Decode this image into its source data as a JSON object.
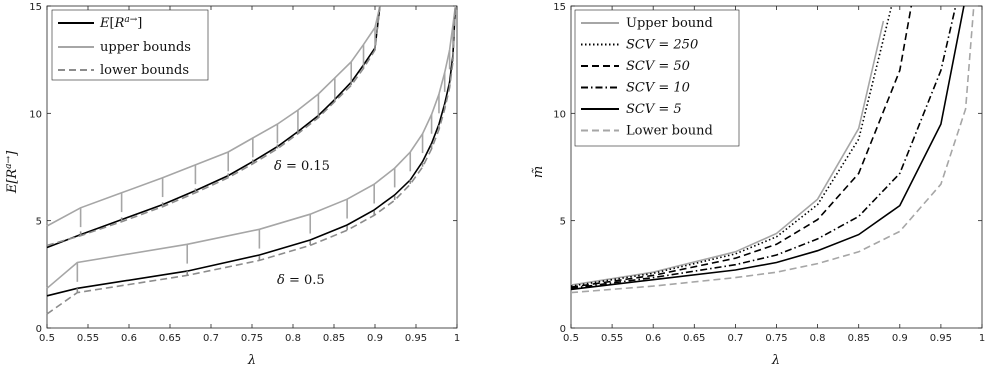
{
  "chart_data": [
    {
      "type": "line",
      "xlabel": "λ",
      "ylabel": "E[R^{a→}]",
      "xlim": [
        0.5,
        1
      ],
      "ylim": [
        0,
        15
      ],
      "xticks": [
        "0.5",
        "0.55",
        "0.6",
        "0.65",
        "0.7",
        "0.75",
        "0.8",
        "0.85",
        "0.9",
        "0.95",
        "1"
      ],
      "yticks": [
        "0",
        "5",
        "10",
        "15"
      ],
      "legend_position": "top-left",
      "legend": [
        "E[R^{a→}]",
        "upper bounds",
        "lower bounds"
      ],
      "annotations": [
        "δ = 0.15",
        "δ = 0.5"
      ],
      "series": [
        {
          "name": "E[R^{a→}]",
          "group": "δ = 0.15",
          "role": "exact",
          "color": "#000000",
          "style": "solid",
          "x": [
            0.5,
            0.541,
            0.591,
            0.641,
            0.681,
            0.721,
            0.751,
            0.781,
            0.806,
            0.831,
            0.851,
            0.871,
            0.886,
            0.9,
            0.906
          ],
          "y": [
            3.75,
            4.35,
            5.05,
            5.75,
            6.4,
            7.1,
            7.75,
            8.45,
            9.15,
            9.9,
            10.65,
            11.45,
            12.25,
            13.05,
            15
          ]
        },
        {
          "name": "upper bounds",
          "group": "δ = 0.15",
          "role": "upper",
          "color": "#a6a6a6",
          "style": "solid",
          "x": [
            0.5,
            0.541,
            0.591,
            0.641,
            0.681,
            0.721,
            0.751,
            0.781,
            0.806,
            0.831,
            0.851,
            0.871,
            0.886,
            0.9,
            0.906
          ],
          "y": [
            4.75,
            5.6,
            6.3,
            7.0,
            7.6,
            8.2,
            8.85,
            9.5,
            10.15,
            10.9,
            11.65,
            12.4,
            13.2,
            14.0,
            15
          ]
        },
        {
          "name": "lower bounds",
          "group": "δ = 0.15",
          "role": "lower",
          "color": "#8c8c8c",
          "style": "dashed",
          "x": [
            0.5,
            0.541,
            0.591,
            0.641,
            0.681,
            0.721,
            0.751,
            0.781,
            0.806,
            0.831,
            0.851,
            0.871,
            0.886,
            0.9,
            0.906
          ],
          "y": [
            3.85,
            4.3,
            4.95,
            5.65,
            6.3,
            7.0,
            7.65,
            8.35,
            9.05,
            9.8,
            10.55,
            11.3,
            12.1,
            12.95,
            15
          ]
        },
        {
          "name": "E[R^{a→}]",
          "group": "δ = 0.5",
          "role": "exact",
          "color": "#000000",
          "style": "solid",
          "x": [
            0.5,
            0.537,
            0.671,
            0.759,
            0.821,
            0.866,
            0.899,
            0.924,
            0.943,
            0.958,
            0.969,
            0.978,
            0.985,
            0.991,
            0.995,
            0.998
          ],
          "y": [
            1.5,
            1.85,
            2.65,
            3.4,
            4.1,
            4.8,
            5.5,
            6.2,
            6.9,
            7.75,
            8.6,
            9.5,
            10.45,
            11.45,
            12.7,
            15
          ]
        },
        {
          "name": "upper bounds",
          "group": "δ = 0.5",
          "role": "upper",
          "color": "#a6a6a6",
          "style": "solid",
          "x": [
            0.5,
            0.537,
            0.671,
            0.759,
            0.821,
            0.866,
            0.899,
            0.924,
            0.943,
            0.958,
            0.969,
            0.978,
            0.985,
            0.991,
            0.995,
            0.998
          ],
          "y": [
            1.85,
            3.05,
            3.9,
            4.6,
            5.3,
            6.0,
            6.7,
            7.45,
            8.2,
            9.05,
            9.95,
            10.9,
            11.9,
            12.95,
            14.1,
            15
          ]
        },
        {
          "name": "lower bounds",
          "group": "δ = 0.5",
          "role": "lower",
          "color": "#8c8c8c",
          "style": "dashed",
          "x": [
            0.5,
            0.537,
            0.671,
            0.759,
            0.821,
            0.866,
            0.899,
            0.924,
            0.943,
            0.958,
            0.969,
            0.978,
            0.985,
            0.991,
            0.995,
            0.998
          ],
          "y": [
            0.65,
            1.65,
            2.45,
            3.15,
            3.85,
            4.55,
            5.25,
            5.95,
            6.7,
            7.5,
            8.35,
            9.25,
            10.2,
            11.2,
            12.4,
            15
          ]
        }
      ]
    },
    {
      "type": "line",
      "xlabel": "λ",
      "ylabel": "m̃",
      "xlim": [
        0.5,
        1
      ],
      "ylim": [
        0,
        15
      ],
      "xticks": [
        "0.5",
        "0.55",
        "0.6",
        "0.65",
        "0.7",
        "0.75",
        "0.8",
        "0.85",
        "0.9",
        "0.95",
        "1"
      ],
      "yticks": [
        "0",
        "5",
        "10",
        "15"
      ],
      "legend_position": "top-left",
      "series": [
        {
          "name": "Upper bound",
          "color": "#a6a6a6",
          "style": "solid",
          "x": [
            0.5,
            0.6,
            0.7,
            0.75,
            0.8,
            0.85,
            0.88
          ],
          "y": [
            2.0,
            2.6,
            3.55,
            4.4,
            6.0,
            9.3,
            14.3
          ]
        },
        {
          "name": "SCV = 250",
          "color": "#000000",
          "style": "dotted",
          "x": [
            0.5,
            0.6,
            0.7,
            0.75,
            0.8,
            0.85,
            0.89
          ],
          "y": [
            1.95,
            2.55,
            3.45,
            4.25,
            5.75,
            8.8,
            15
          ]
        },
        {
          "name": "SCV = 50",
          "color": "#000000",
          "style": "dashed",
          "x": [
            0.5,
            0.6,
            0.7,
            0.75,
            0.8,
            0.85,
            0.9,
            0.914
          ],
          "y": [
            1.9,
            2.45,
            3.25,
            3.9,
            5.05,
            7.2,
            12.0,
            15
          ]
        },
        {
          "name": "SCV = 10",
          "color": "#000000",
          "style": "dashdot",
          "x": [
            0.5,
            0.6,
            0.7,
            0.75,
            0.8,
            0.85,
            0.9,
            0.95,
            0.968
          ],
          "y": [
            1.85,
            2.35,
            2.95,
            3.4,
            4.15,
            5.2,
            7.2,
            12.0,
            15
          ]
        },
        {
          "name": "SCV = 5",
          "color": "#000000",
          "style": "solid",
          "x": [
            0.5,
            0.6,
            0.7,
            0.75,
            0.8,
            0.85,
            0.9,
            0.95,
            0.978
          ],
          "y": [
            1.8,
            2.25,
            2.7,
            3.05,
            3.6,
            4.35,
            5.7,
            9.5,
            15
          ]
        },
        {
          "name": "Lower bound",
          "color": "#a6a6a6",
          "style": "dashed",
          "x": [
            0.5,
            0.6,
            0.7,
            0.75,
            0.8,
            0.85,
            0.9,
            0.95,
            0.98,
            0.99
          ],
          "y": [
            1.65,
            1.95,
            2.35,
            2.6,
            3.0,
            3.55,
            4.5,
            6.7,
            10.2,
            15
          ]
        }
      ]
    }
  ]
}
